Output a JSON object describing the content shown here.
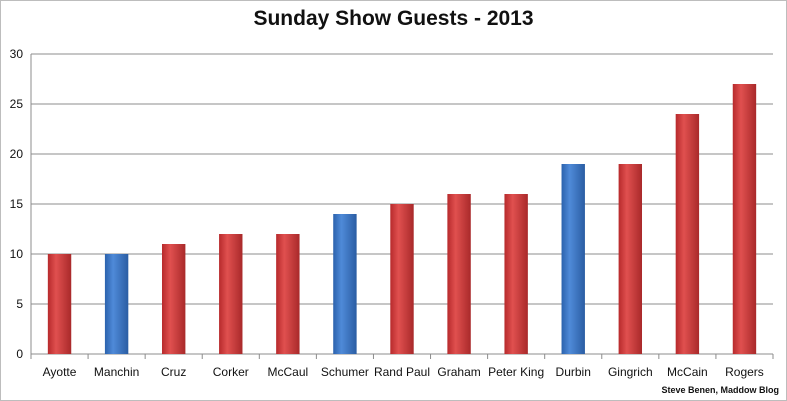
{
  "chart_data": {
    "type": "bar",
    "title": "Sunday Show Guests - 2013",
    "categories": [
      "Ayotte",
      "Manchin",
      "Cruz",
      "Corker",
      "McCaul",
      "Schumer",
      "Rand Paul",
      "Graham",
      "Peter King",
      "Durbin",
      "Gingrich",
      "McCain",
      "Rogers"
    ],
    "values": [
      10,
      10,
      11,
      12,
      12,
      14,
      15,
      16,
      16,
      19,
      19,
      24,
      27
    ],
    "party": [
      "R",
      "D",
      "R",
      "R",
      "R",
      "D",
      "R",
      "R",
      "R",
      "D",
      "R",
      "R",
      "R"
    ],
    "colors": {
      "R": "#c8393a",
      "D": "#3a75c4"
    },
    "ylim": [
      0,
      30
    ],
    "yticks": [
      0,
      5,
      10,
      15,
      20,
      25,
      30
    ],
    "grid": true,
    "legend": "none",
    "xlabel": "",
    "ylabel": ""
  },
  "credit": "Steve Benen, Maddow Blog"
}
